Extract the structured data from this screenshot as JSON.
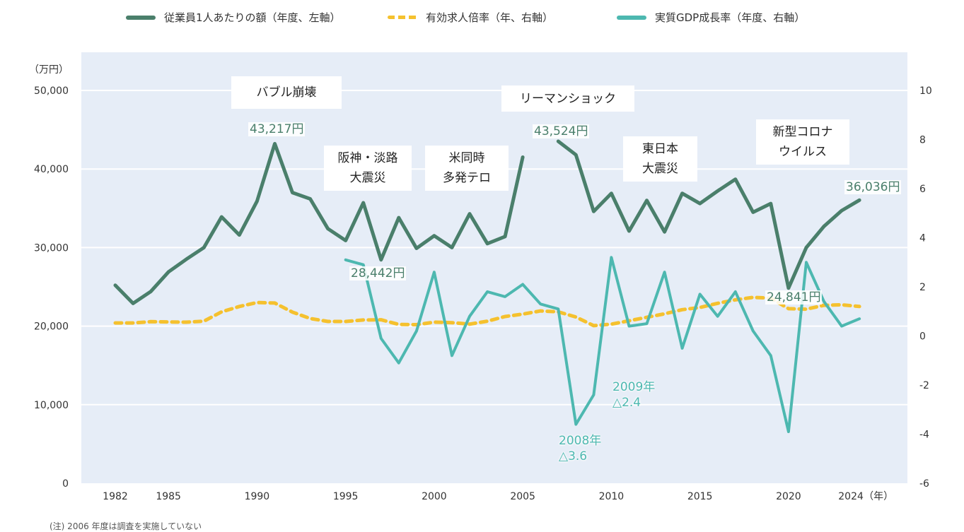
{
  "legend": [
    {
      "label": "従業員1人あたりの額（年度、左軸）",
      "color": "#4a7f6b",
      "style": "solid"
    },
    {
      "label": "有効求人倍率（年、右軸）",
      "color": "#f5c12e",
      "style": "dashed"
    },
    {
      "label": "実質GDP成長率（年度、右軸）",
      "color": "#4db8b0",
      "style": "solid"
    }
  ],
  "annotations": [
    {
      "text": "バブル崩壊"
    },
    {
      "text": "阪神・淡路\n大震災"
    },
    {
      "text": "米同時\n多発テロ"
    },
    {
      "text": "リーマンショック"
    },
    {
      "text": "東日本\n大震災"
    },
    {
      "text": "新型コロナ\nウイルス"
    }
  ],
  "value_labels": [
    {
      "text": "43,217円"
    },
    {
      "text": "28,442円"
    },
    {
      "text": "43,524円"
    },
    {
      "text": "24,841円"
    },
    {
      "text": "36,036円"
    }
  ],
  "gdp_labels": [
    {
      "text": "2009年\n△2.4"
    },
    {
      "text": "2008年\n△3.6"
    }
  ],
  "footnote": "(注) 2006 年度は調査を実施していない",
  "colors": {
    "plot_bg": "#e6edf7",
    "grid": "#ffffff",
    "employee": "#4a7f6b",
    "job_ratio": "#f5c12e",
    "gdp": "#4db8b0"
  },
  "chart_data": {
    "type": "line",
    "title": "",
    "xlabel": "（年）",
    "ylabel_left": "（万円）",
    "ylabel_right": "",
    "x_ticks": [
      "1982",
      "1985",
      "1990",
      "1995",
      "2000",
      "2005",
      "2010",
      "2015",
      "2020",
      "2024"
    ],
    "x_tick_suffix_last": "（年）",
    "xlim": [
      1982,
      2024
    ],
    "ylim_left": [
      0,
      50000
    ],
    "y_ticks_left": [
      "0",
      "10,000",
      "20,000",
      "30,000",
      "40,000",
      "50,000"
    ],
    "ylim_right": [
      -6,
      10
    ],
    "y_ticks_right": [
      "-6",
      "-4",
      "-2",
      "0",
      "2",
      "4",
      "6",
      "8",
      "10"
    ],
    "grid": true,
    "legend_position": "top",
    "x": [
      1982,
      1983,
      1984,
      1985,
      1986,
      1987,
      1988,
      1989,
      1990,
      1991,
      1992,
      1993,
      1994,
      1995,
      1996,
      1997,
      1998,
      1999,
      2000,
      2001,
      2002,
      2003,
      2004,
      2005,
      2006,
      2007,
      2008,
      2009,
      2010,
      2011,
      2012,
      2013,
      2014,
      2015,
      2016,
      2017,
      2018,
      2019,
      2020,
      2021,
      2022,
      2023,
      2024
    ],
    "series": [
      {
        "name": "従業員1人あたりの額（年度、左軸）",
        "axis": "left",
        "values": [
          25200,
          22900,
          24400,
          26900,
          28500,
          30000,
          33900,
          31600,
          35900,
          43217,
          37000,
          36200,
          32400,
          30900,
          35700,
          28442,
          33800,
          29900,
          31500,
          30000,
          34300,
          30500,
          31400,
          41500,
          null,
          43524,
          41800,
          34600,
          36900,
          32100,
          36000,
          32000,
          36900,
          35600,
          37200,
          38700,
          34500,
          35600,
          24841,
          30000,
          32700,
          34700,
          36036
        ]
      },
      {
        "name": "有効求人倍率（年、右軸）",
        "axis": "right",
        "values": [
          0.53,
          0.53,
          0.58,
          0.57,
          0.56,
          0.6,
          0.98,
          1.2,
          1.36,
          1.34,
          0.97,
          0.71,
          0.59,
          0.59,
          0.65,
          0.66,
          0.47,
          0.46,
          0.56,
          0.54,
          0.48,
          0.6,
          0.79,
          0.89,
          1.02,
          0.98,
          0.77,
          0.42,
          0.48,
          0.62,
          0.76,
          0.9,
          1.07,
          1.16,
          1.33,
          1.47,
          1.57,
          1.54,
          1.11,
          1.09,
          1.25,
          1.27,
          1.2
        ]
      },
      {
        "name": "実質GDP成長率（年度、右軸）",
        "axis": "right",
        "values": [
          null,
          null,
          null,
          null,
          null,
          null,
          null,
          null,
          null,
          null,
          null,
          null,
          null,
          3.1,
          2.9,
          -0.1,
          -1.1,
          0.2,
          2.6,
          -0.8,
          0.8,
          1.8,
          1.6,
          2.1,
          1.3,
          1.1,
          -3.6,
          -2.4,
          3.2,
          0.4,
          0.5,
          2.6,
          -0.5,
          1.7,
          0.8,
          1.8,
          0.2,
          -0.8,
          -3.9,
          3.0,
          1.4,
          0.4,
          0.7
        ]
      }
    ]
  }
}
